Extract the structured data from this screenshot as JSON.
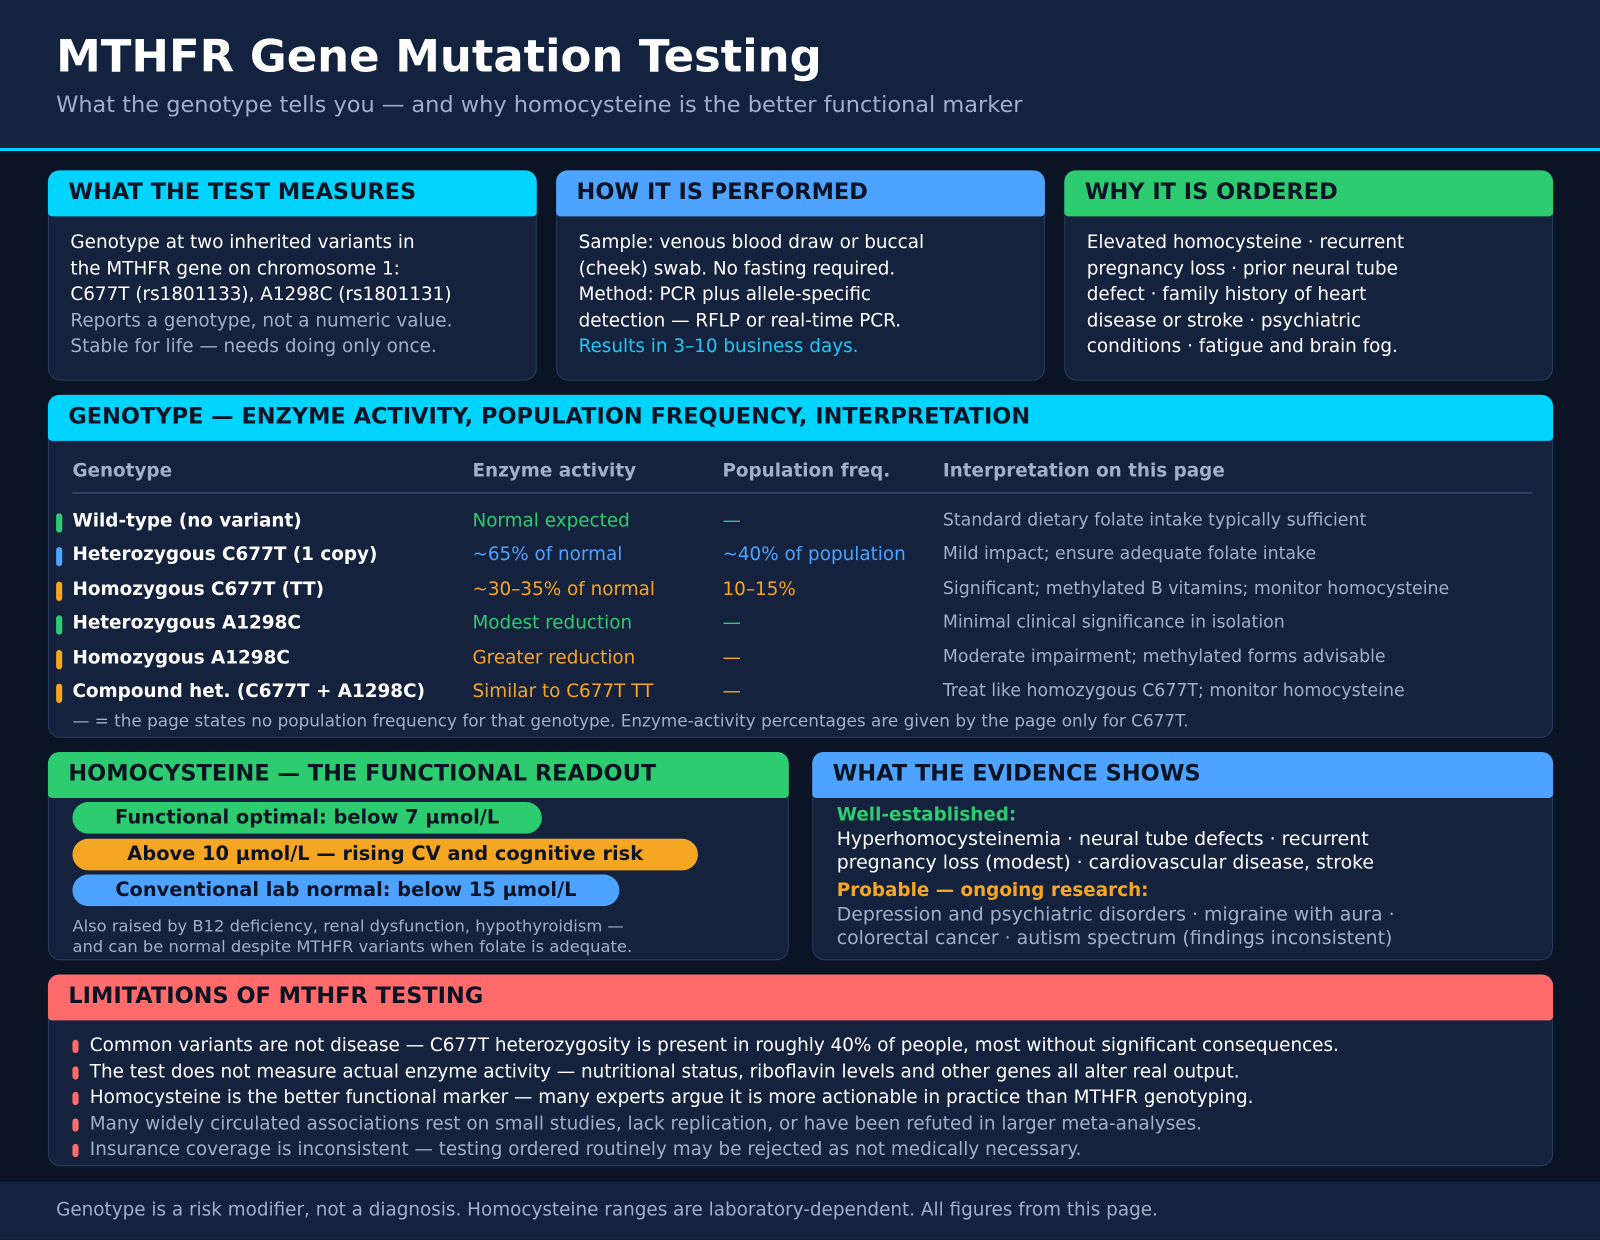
{
  "header": {
    "title": "MTHFR Gene Mutation Testing",
    "subtitle": "What the genotype tells you — and why homocysteine is the better functional marker"
  },
  "cards": [
    {
      "heading": "WHAT THE TEST MEASURES",
      "body": [
        "Genotype at two inherited variants in",
        "the MTHFR gene on chromosome 1:",
        "C677T (rs1801133), A1298C (rs1801131)"
      ],
      "muted": [
        "Reports a genotype, not a numeric value.",
        "Stable for life — needs doing only once."
      ],
      "highlight": []
    },
    {
      "heading": "HOW IT IS PERFORMED",
      "body": [
        "Sample: venous blood draw or buccal",
        "(cheek) swab. No fasting required.",
        "Method: PCR plus allele-specific",
        "detection — RFLP or real-time PCR."
      ],
      "muted": [],
      "highlight": [
        "Results in 3–10 business days."
      ]
    },
    {
      "heading": "WHY IT IS ORDERED",
      "body": [
        "Elevated homocysteine · recurrent",
        "pregnancy loss · prior neural tube",
        "defect · family history of heart",
        "disease or stroke · psychiatric",
        "conditions · fatigue and brain fog."
      ],
      "muted": [],
      "highlight": []
    }
  ],
  "table": {
    "heading": "GENOTYPE — ENZYME ACTIVITY, POPULATION FREQUENCY, INTERPRETATION",
    "columns": [
      "Genotype",
      "Enzyme activity",
      "Population freq.",
      "Interpretation on this page"
    ],
    "rows": [
      [
        "Wild-type (no variant)",
        "Normal expected",
        "—",
        "Standard dietary folate intake typically sufficient"
      ],
      [
        "Heterozygous C677T (1 copy)",
        "~65% of normal",
        "~40% of population",
        "Mild impact; ensure adequate folate intake"
      ],
      [
        "Homozygous C677T (TT)",
        "~30–35% of normal",
        "10–15%",
        "Significant; methylated B vitamins; monitor homocysteine"
      ],
      [
        "Heterozygous A1298C",
        "Modest reduction",
        "—",
        "Minimal clinical significance in isolation"
      ],
      [
        "Homozygous A1298C",
        "Greater reduction",
        "—",
        "Moderate impairment; methylated forms advisable"
      ],
      [
        "Compound het. (C677T + A1298C)",
        "Similar to C677T TT",
        "—",
        "Treat like homozygous C677T; monitor homocysteine"
      ]
    ],
    "row_colors": [
      "#2ecc71",
      "#4da3ff",
      "#f5a623",
      "#2ecc71",
      "#f5a623",
      "#f5a623"
    ],
    "footnote": "— = the page states no population frequency for that genotype. Enzyme-activity percentages are given by the page only for C677T."
  },
  "homocysteine": {
    "heading": "HOMOCYSTEINE — THE FUNCTIONAL READOUT",
    "pills": [
      {
        "text": "Functional optimal: below 7 µmol/L",
        "color": "#2ecc71"
      },
      {
        "text": "Above 10 µmol/L — rising CV and cognitive risk",
        "color": "#f5a623"
      },
      {
        "text": "Conventional lab normal: below 15 µmol/L",
        "color": "#4da3ff"
      }
    ],
    "note": [
      "Also raised by B12 deficiency, renal dysfunction, hypothyroidism —",
      "and can be normal despite MTHFR variants when folate is adequate."
    ]
  },
  "evidence": {
    "heading": "WHAT THE EVIDENCE SHOWS",
    "sections": [
      {
        "label": "Well-established:",
        "lines": [
          "Hyperhomocysteinemia · neural tube defects · recurrent",
          "pregnancy loss (modest) · cardiovascular disease, stroke"
        ]
      },
      {
        "label": "Probable — ongoing research:",
        "lines": [
          "Depression and psychiatric disorders · migraine with aura ·",
          "colorectal cancer · autism spectrum (findings inconsistent)"
        ]
      }
    ]
  },
  "limitations": {
    "heading": "LIMITATIONS OF MTHFR TESTING",
    "items": [
      "Common variants are not disease — C677T heterozygosity is present in roughly 40% of people, most without significant consequences.",
      "The test does not measure actual enzyme activity — nutritional status, riboflavin levels and other genes all alter real output.",
      "Homocysteine is the better functional marker — many experts argue it is more actionable in practice than MTHFR genotyping.",
      "Many widely circulated associations rest on small studies, lack replication, or have been refuted in larger meta-analyses.",
      "Insurance coverage is inconsistent — testing ordered routinely may be rejected as not medically necessary."
    ]
  },
  "footer": "Genotype is a risk modifier, not a diagnosis. Homocysteine ranges are laboratory-dependent. All figures from this page."
}
